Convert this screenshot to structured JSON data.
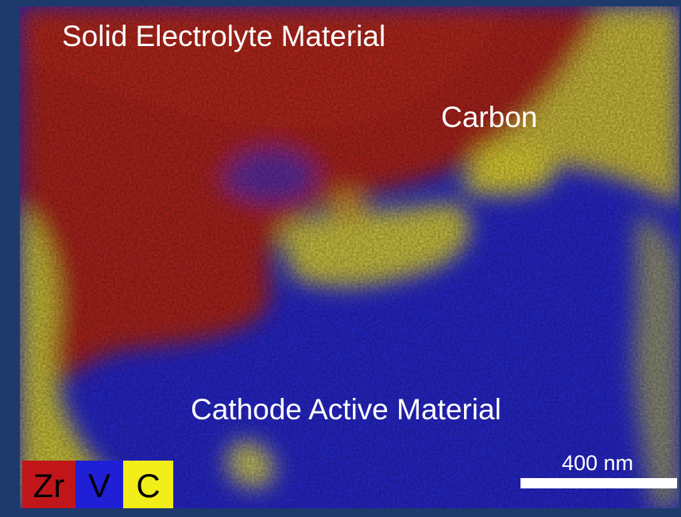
{
  "labels": {
    "electrolyte": "Solid Electrolyte Material",
    "carbon": "Carbon",
    "cathode": "Cathode Active Material"
  },
  "legend": {
    "items": [
      {
        "label": "Zr",
        "color": "#c0161a"
      },
      {
        "label": "V",
        "color": "#1f1fd6"
      },
      {
        "label": "C",
        "color": "#f2ee1a"
      }
    ]
  },
  "scale_bar": {
    "label": "400 nm"
  }
}
